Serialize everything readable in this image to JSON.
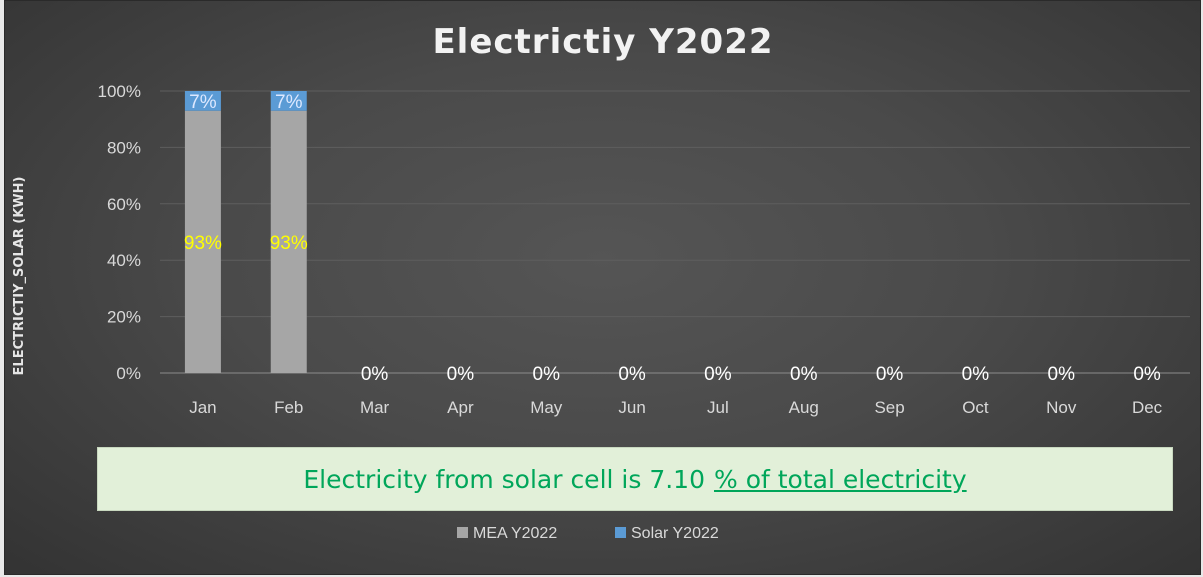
{
  "chart_data": {
    "type": "bar",
    "stacked": true,
    "normalized": true,
    "title": "Electrictiy Y2022",
    "ylabel": "ELECTRICTIY_SOLAR (KWH)",
    "xlabel": "",
    "ylim": [
      0,
      100
    ],
    "yticks": [
      "0%",
      "20%",
      "40%",
      "60%",
      "80%",
      "100%"
    ],
    "categories": [
      "Jan",
      "Feb",
      "Mar",
      "Apr",
      "May",
      "Jun",
      "Jul",
      "Aug",
      "Sep",
      "Oct",
      "Nov",
      "Dec"
    ],
    "series": [
      {
        "name": "MEA Y2022",
        "values": [
          93,
          93,
          0,
          0,
          0,
          0,
          0,
          0,
          0,
          0,
          0,
          0
        ],
        "labels": [
          "93%",
          "93%",
          "0%",
          "0%",
          "0%",
          "0%",
          "0%",
          "0%",
          "0%",
          "0%",
          "0%",
          "0%"
        ],
        "color": "#a6a6a6"
      },
      {
        "name": "Solar Y2022",
        "values": [
          7,
          7,
          0,
          0,
          0,
          0,
          0,
          0,
          0,
          0,
          0,
          0
        ],
        "labels": [
          "7%",
          "7%",
          "",
          "",
          "",
          "",
          "",
          "",
          "",
          "",
          "",
          ""
        ],
        "color": "#5b9bd5"
      }
    ],
    "legend": "bottom",
    "grid": true
  },
  "note": {
    "text": "Electricity from solar cell is 7.10",
    "link_text": "% of total electricity"
  }
}
